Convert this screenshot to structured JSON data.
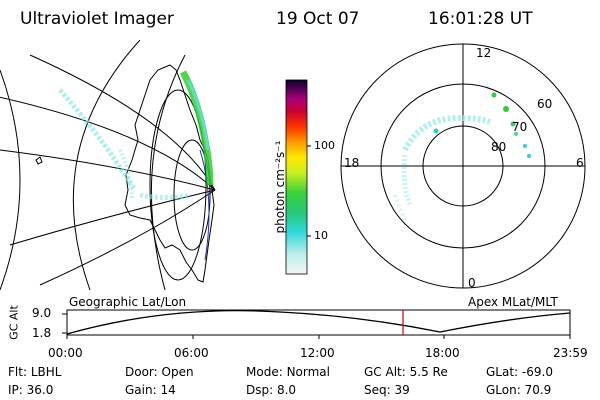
{
  "header": {
    "instrument": "Ultraviolet Imager",
    "date": "19 Oct 07",
    "time": "16:01:28 UT"
  },
  "colorbar": {
    "label": "photon cm⁻²s⁻¹",
    "ticks": [
      "100",
      "10"
    ]
  },
  "polar_plot": {
    "mlt_labels": {
      "top": "12",
      "left": "18",
      "right": "6",
      "bottom": "0"
    },
    "lat_labels": [
      "60",
      "70",
      "80"
    ]
  },
  "timeline": {
    "left_caption": "Geographic Lat/Lon",
    "right_caption": "Apex MLat/MLT",
    "axis_label": "GC Alt",
    "y_ticks": [
      "9.0",
      "1.8"
    ],
    "x_ticks": [
      "00:00",
      "06:00",
      "12:00",
      "18:00",
      "23:59"
    ],
    "marker_fraction": 0.668
  },
  "info": {
    "row1": [
      {
        "key": "Flt:",
        "value": "LBHL"
      },
      {
        "key": "Door:",
        "value": "Open"
      },
      {
        "key": "Mode:",
        "value": "Normal"
      },
      {
        "key": "GC Alt:",
        "value": "5.5 Re"
      },
      {
        "key": "GLat:",
        "value": "-69.0"
      }
    ],
    "row2": [
      {
        "key": "IP:",
        "value": "36.0"
      },
      {
        "key": "Gain:",
        "value": "14"
      },
      {
        "key": "Dsp:",
        "value": "8.0"
      },
      {
        "key": "Seq:",
        "value": "39"
      },
      {
        "key": "GLon:",
        "value": "70.9"
      }
    ]
  },
  "colors": {
    "marker": "#cc0000",
    "aurora_green": "#33cc33",
    "aurora_cyan": "#66dddd"
  }
}
